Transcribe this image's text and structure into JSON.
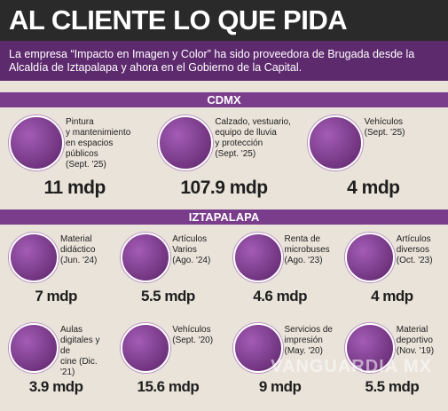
{
  "header": {
    "title": "AL CLIENTE LO QUE PIDA",
    "subtitle": "La empresa “Impacto en Imagen y Color” ha sido proveedora de Brugada desde la Alcaldía de Iztapalapa y ahora en el Gobierno de la Capital."
  },
  "sections": [
    {
      "title": "CDMX",
      "items": [
        {
          "label": "Pintura\ny mantenimiento\nen espacios públicos\n(Sept. '25)",
          "amount": "11 mdp"
        },
        {
          "label": "Calzado, vestuario,\nequipo de lluvia\ny protección\n(Sept. '25)",
          "amount": "107.9 mdp"
        },
        {
          "label": "Vehículos\n(Sept. '25)",
          "amount": "4 mdp"
        }
      ]
    },
    {
      "title": "IZTAPALAPA",
      "items": [
        {
          "label": "Material\ndidáctico\n(Jun. '24)",
          "amount": "7 mdp"
        },
        {
          "label": "Artículos\nVarios\n(Ago. '24)",
          "amount": "5.5 mdp"
        },
        {
          "label": "Renta de\nmicrobuses\n(Ago. '23)",
          "amount": "4.6 mdp"
        },
        {
          "label": "Artículos\ndiversos\n(Oct. '23)",
          "amount": "4 mdp"
        },
        {
          "label": "Aulas\ndigitales y de\ncine (Dic. '21)",
          "amount": "3.9 mdp"
        },
        {
          "label": "Vehículos\n(Sept. '20)",
          "amount": "15.6 mdp"
        },
        {
          "label": "Servicios de\nimpresión\n(May. '20)",
          "amount": "9 mdp"
        },
        {
          "label": "Material\ndeportivo\n(Nov. '19)",
          "amount": "5.5 mdp"
        }
      ]
    }
  ],
  "watermark": "VANGUARDIA MX"
}
